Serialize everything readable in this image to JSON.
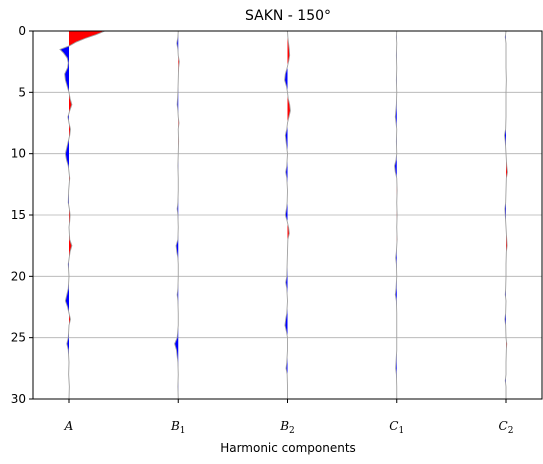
{
  "chart_data": {
    "type": "area",
    "title": "SAKN - 150°",
    "xlabel": "Harmonic components",
    "ylabel": "",
    "categories": [
      {
        "id": "A",
        "base": "A",
        "sub": ""
      },
      {
        "id": "B1",
        "base": "B",
        "sub": "1"
      },
      {
        "id": "B2",
        "base": "B",
        "sub": "2"
      },
      {
        "id": "C1",
        "base": "C",
        "sub": "1"
      },
      {
        "id": "C2",
        "base": "C",
        "sub": "2"
      }
    ],
    "ylim": [
      30,
      0
    ],
    "yticks": [
      "0",
      "5",
      "10",
      "15",
      "20",
      "25",
      "30"
    ],
    "grid": "horizontal",
    "positive_color": "#ff0000",
    "negative_color": "#0000ff",
    "trace_color": "#a0a0a0",
    "series": [
      {
        "id": "A",
        "depth": [
          0,
          0.3,
          0.6,
          0.9,
          1.2,
          1.5,
          1.8,
          2.2,
          2.6,
          3.0,
          3.5,
          4.0,
          4.5,
          5.0,
          5.5,
          6.0,
          6.5,
          7.0,
          7.5,
          8.0,
          8.5,
          9.0,
          9.5,
          10.0,
          10.5,
          11.0,
          11.5,
          12.0,
          13.0,
          14.0,
          14.5,
          15.0,
          15.5,
          16.0,
          17.0,
          17.5,
          18.0,
          19.0,
          20.0,
          21.0,
          22.0,
          22.5,
          23.0,
          23.5,
          24.0,
          25.0,
          25.5,
          26.0,
          27.0,
          28.0,
          28.5,
          29.0,
          30.0
        ],
        "amp": [
          1.0,
          0.75,
          0.45,
          0.2,
          0.02,
          -0.25,
          -0.15,
          -0.05,
          -0.02,
          -0.04,
          -0.12,
          -0.1,
          -0.05,
          0.0,
          0.03,
          0.08,
          0.02,
          -0.03,
          0.0,
          0.04,
          0.02,
          -0.02,
          -0.06,
          -0.1,
          -0.07,
          -0.02,
          0.0,
          0.02,
          -0.01,
          -0.02,
          0.01,
          0.03,
          0.02,
          0.0,
          0.02,
          0.08,
          0.03,
          -0.02,
          0.0,
          -0.02,
          -0.1,
          -0.04,
          0.0,
          0.04,
          0.0,
          -0.02,
          -0.06,
          -0.02,
          0.0,
          -0.01,
          0.0,
          0.01,
          0.0
        ]
      },
      {
        "id": "B1",
        "depth": [
          0,
          0.5,
          1.0,
          1.5,
          2.0,
          2.5,
          3.0,
          4.0,
          5.0,
          6.0,
          6.5,
          7.0,
          7.5,
          8.0,
          9.0,
          10.0,
          11.0,
          12.0,
          13.0,
          14.0,
          14.5,
          15.0,
          16.0,
          17.0,
          17.5,
          18.0,
          18.5,
          19.0,
          20.0,
          21.0,
          21.5,
          22.0,
          23.0,
          24.0,
          25.0,
          25.5,
          26.0,
          27.0,
          28.0,
          29.0,
          30.0
        ],
        "amp": [
          0.0,
          -0.01,
          -0.04,
          -0.01,
          0.0,
          0.03,
          0.01,
          0.0,
          -0.01,
          -0.03,
          -0.01,
          0.0,
          0.02,
          0.0,
          0.01,
          0.0,
          -0.01,
          0.0,
          0.0,
          -0.01,
          -0.03,
          -0.01,
          0.0,
          -0.01,
          -0.06,
          -0.04,
          -0.01,
          0.0,
          0.0,
          -0.01,
          -0.03,
          -0.01,
          0.0,
          0.0,
          -0.03,
          -0.1,
          -0.05,
          -0.01,
          0.0,
          -0.01,
          0.0
        ]
      },
      {
        "id": "B2",
        "depth": [
          0,
          0.5,
          1.0,
          1.5,
          2.0,
          2.5,
          3.0,
          3.5,
          4.0,
          4.5,
          5.0,
          5.5,
          6.0,
          6.5,
          7.0,
          7.5,
          8.0,
          8.5,
          9.0,
          10.0,
          11.0,
          11.5,
          12.0,
          13.0,
          14.0,
          14.5,
          15.0,
          15.5,
          16.0,
          16.5,
          17.0,
          18.0,
          19.0,
          20.0,
          20.5,
          21.0,
          22.0,
          23.0,
          23.5,
          24.0,
          24.5,
          25.0,
          26.0,
          27.0,
          27.5,
          28.0,
          29.0,
          30.0
        ],
        "amp": [
          0.0,
          0.01,
          0.03,
          0.05,
          0.06,
          0.03,
          -0.01,
          -0.06,
          -0.08,
          -0.03,
          0.0,
          0.02,
          0.06,
          0.08,
          0.04,
          0.0,
          -0.02,
          -0.06,
          -0.04,
          0.0,
          -0.02,
          -0.05,
          -0.02,
          0.0,
          -0.01,
          -0.03,
          -0.06,
          -0.01,
          0.03,
          0.05,
          0.01,
          0.0,
          -0.01,
          -0.02,
          -0.05,
          -0.02,
          0.0,
          -0.02,
          -0.05,
          -0.07,
          -0.03,
          0.0,
          0.0,
          -0.02,
          -0.04,
          -0.01,
          0.0,
          0.0
        ]
      },
      {
        "id": "C1",
        "depth": [
          0,
          0.5,
          1.0,
          2.0,
          3.0,
          4.0,
          5.0,
          6.0,
          7.0,
          7.5,
          8.0,
          9.0,
          10.0,
          10.5,
          11.0,
          11.5,
          12.0,
          13.0,
          14.0,
          15.0,
          16.0,
          17.0,
          18.0,
          18.5,
          19.0,
          20.0,
          21.0,
          21.5,
          22.0,
          23.0,
          24.0,
          25.0,
          26.0,
          27.0,
          27.5,
          28.0,
          29.0,
          30.0
        ],
        "amp": [
          0.0,
          -0.01,
          0.0,
          -0.01,
          0.0,
          -0.01,
          0.0,
          -0.01,
          -0.04,
          -0.02,
          0.0,
          -0.01,
          0.0,
          -0.02,
          -0.06,
          -0.04,
          0.0,
          0.01,
          0.0,
          0.01,
          0.0,
          0.01,
          -0.01,
          -0.03,
          -0.01,
          0.0,
          -0.02,
          -0.04,
          -0.01,
          0.0,
          0.0,
          0.0,
          0.0,
          -0.02,
          -0.03,
          -0.01,
          0.0,
          0.0
        ]
      },
      {
        "id": "C2",
        "depth": [
          0,
          0.5,
          1.0,
          2.0,
          3.0,
          4.0,
          5.0,
          6.0,
          7.0,
          8.0,
          8.5,
          9.0,
          10.0,
          11.0,
          11.5,
          12.0,
          13.0,
          14.0,
          14.5,
          15.0,
          16.0,
          17.0,
          17.5,
          18.0,
          19.0,
          20.0,
          21.0,
          21.5,
          22.0,
          23.0,
          23.5,
          24.0,
          25.0,
          25.5,
          26.0,
          27.0,
          28.0,
          28.5,
          29.0,
          30.0
        ],
        "amp": [
          0.0,
          -0.02,
          0.0,
          0.0,
          0.0,
          0.01,
          0.0,
          0.0,
          0.0,
          -0.01,
          -0.04,
          -0.02,
          0.0,
          0.02,
          0.04,
          0.01,
          0.0,
          -0.01,
          -0.03,
          -0.02,
          0.0,
          0.02,
          0.03,
          0.01,
          0.0,
          0.0,
          -0.01,
          -0.02,
          0.0,
          -0.01,
          -0.03,
          -0.01,
          0.0,
          0.02,
          0.01,
          0.0,
          0.0,
          -0.02,
          0.0,
          0.0
        ]
      }
    ]
  }
}
